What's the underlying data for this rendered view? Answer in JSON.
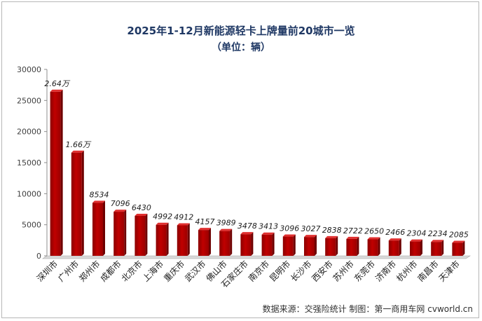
{
  "chart_data": {
    "type": "bar",
    "title": "2025年1-12月新能源轻卡上牌量前20城市一览",
    "subtitle": "（单位：辆）",
    "categories": [
      "深圳市",
      "广州市",
      "郑州市",
      "成都市",
      "北京市",
      "上海市",
      "重庆市",
      "武汉市",
      "佛山市",
      "石家庄市",
      "南京市",
      "昆明市",
      "长沙市",
      "西安市",
      "苏州市",
      "东莞市",
      "济南市",
      "杭州市",
      "南昌市",
      "天津市"
    ],
    "values": [
      26400,
      16600,
      8534,
      7096,
      6430,
      4992,
      4912,
      4157,
      3989,
      3478,
      3413,
      3096,
      3027,
      2838,
      2722,
      2650,
      2466,
      2304,
      2234,
      2085
    ],
    "data_labels": [
      "2.64万",
      "1.66万",
      "8534",
      "7096",
      "6430",
      "4992",
      "4912",
      "4157",
      "3989",
      "3478",
      "3413",
      "3096",
      "3027",
      "2838",
      "2722",
      "2650",
      "2466",
      "2304",
      "2234",
      "2085"
    ],
    "ylim": [
      0,
      30000
    ],
    "yticks": [
      0,
      5000,
      10000,
      15000,
      20000,
      25000,
      30000
    ],
    "xlabel": "",
    "ylabel": "",
    "grid": false,
    "bar_color": "#c00000"
  },
  "source_note": "数据来源：交强险统计  制图：第一商用车网 cvworld.cn"
}
